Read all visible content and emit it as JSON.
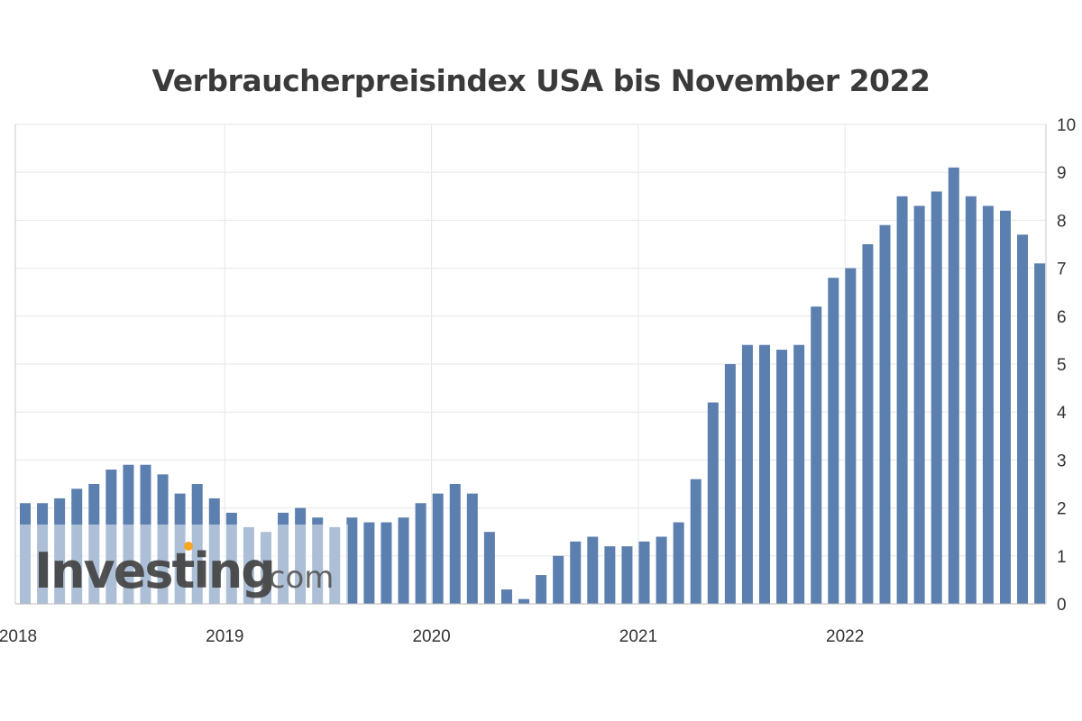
{
  "chart_data": {
    "type": "bar",
    "title": "Verbraucherpreisindex USA bis November 2022",
    "xlabel": "",
    "ylabel": "",
    "ylim": [
      0,
      10
    ],
    "yticks": [
      "0",
      "1",
      "2",
      "3",
      "4",
      "5",
      "6",
      "7",
      "8",
      "9",
      "10"
    ],
    "xticks": [
      "2018",
      "2019",
      "2020",
      "2021",
      "2022"
    ],
    "grid": true,
    "y_axis_side": "right",
    "categories": [
      "2017-12",
      "2018-01",
      "2018-02",
      "2018-03",
      "2018-04",
      "2018-05",
      "2018-06",
      "2018-07",
      "2018-08",
      "2018-09",
      "2018-10",
      "2018-11",
      "2018-12",
      "2019-01",
      "2019-02",
      "2019-03",
      "2019-04",
      "2019-05",
      "2019-06",
      "2019-07",
      "2019-08",
      "2019-09",
      "2019-10",
      "2019-11",
      "2019-12",
      "2020-01",
      "2020-02",
      "2020-03",
      "2020-04",
      "2020-05",
      "2020-06",
      "2020-07",
      "2020-08",
      "2020-09",
      "2020-10",
      "2020-11",
      "2020-12",
      "2021-01",
      "2021-02",
      "2021-03",
      "2021-04",
      "2021-05",
      "2021-06",
      "2021-07",
      "2021-08",
      "2021-09",
      "2021-10",
      "2021-11",
      "2021-12",
      "2022-01",
      "2022-02",
      "2022-03",
      "2022-04",
      "2022-05",
      "2022-06",
      "2022-07",
      "2022-08",
      "2022-09",
      "2022-10",
      "2022-11"
    ],
    "values": [
      2.1,
      2.1,
      2.2,
      2.4,
      2.5,
      2.8,
      2.9,
      2.9,
      2.7,
      2.3,
      2.5,
      2.2,
      1.9,
      1.6,
      1.5,
      1.9,
      2.0,
      1.8,
      1.6,
      1.8,
      1.7,
      1.7,
      1.8,
      2.1,
      2.3,
      2.5,
      2.3,
      1.5,
      0.3,
      0.1,
      0.6,
      1.0,
      1.3,
      1.4,
      1.2,
      1.2,
      1.3,
      1.4,
      1.7,
      2.6,
      4.2,
      5.0,
      5.4,
      5.4,
      5.3,
      5.4,
      6.2,
      6.8,
      7.0,
      7.5,
      7.9,
      8.5,
      8.3,
      8.6,
      9.1,
      8.5,
      8.3,
      8.2,
      7.7,
      7.1
    ],
    "bar_color": "#5b7fae",
    "watermark": "Investing.com"
  }
}
